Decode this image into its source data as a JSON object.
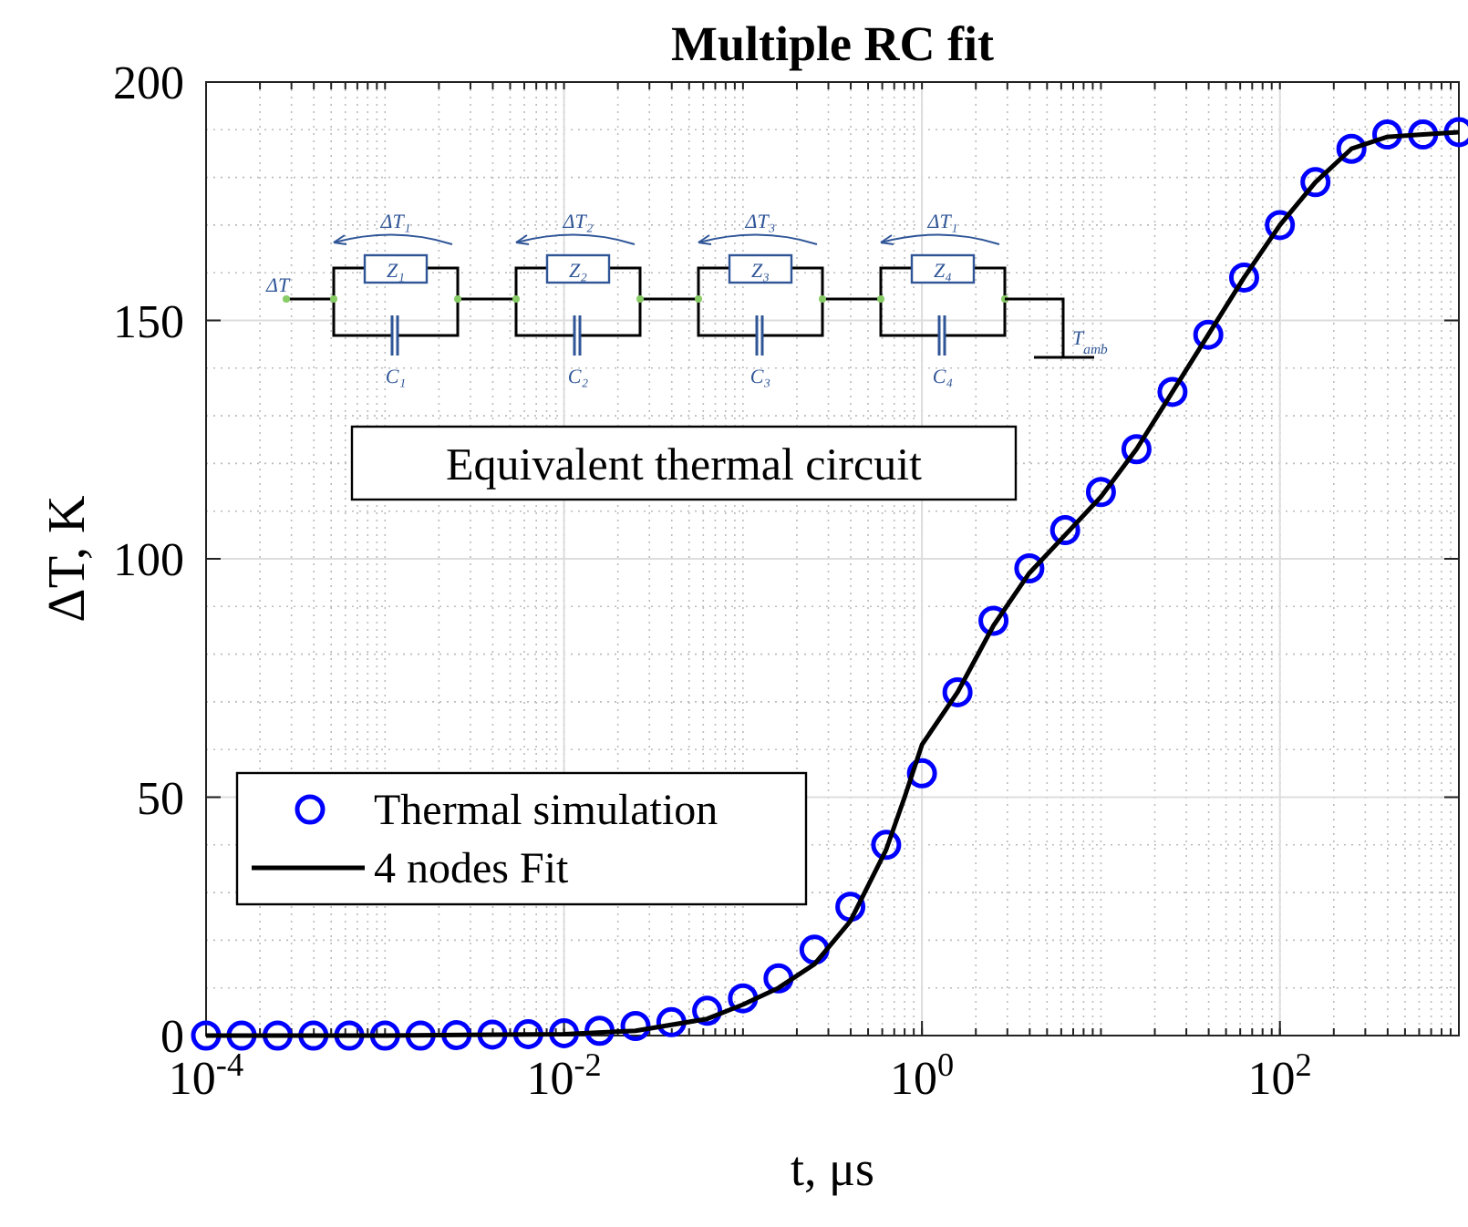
{
  "chart_data": {
    "type": "scatter",
    "title": "Multiple RC fit",
    "xlabel": "t, μs",
    "ylabel": "ΔT, K",
    "log": "x",
    "xlim": [
      0.0001,
      1000
    ],
    "ylim": [
      0,
      200
    ],
    "xticks": [
      {
        "value": 0.0001,
        "label": "10$^{-4}$"
      },
      {
        "value": 0.01,
        "label": "10$^{-2}$"
      },
      {
        "value": 1,
        "label": "10$^{0}$"
      },
      {
        "value": 100,
        "label": "10$^{2}$"
      }
    ],
    "yticks": [
      0,
      50,
      100,
      150,
      200
    ],
    "grid": true,
    "legend": "bottom left",
    "series": [
      {
        "name": "Thermal simulation",
        "marker": "circle",
        "color": "#0000ff",
        "x": [
          0.0001,
          0.000158,
          0.000251,
          0.000398,
          0.000631,
          0.001,
          0.00158,
          0.00251,
          0.00398,
          0.00631,
          0.01,
          0.0158,
          0.0251,
          0.0398,
          0.0631,
          0.1,
          0.158,
          0.251,
          0.398,
          0.631,
          1,
          1.58,
          2.51,
          3.98,
          6.31,
          10,
          15.8,
          25.1,
          39.8,
          63.1,
          100,
          158,
          251,
          398,
          631,
          1000
        ],
        "values": [
          0,
          0,
          0,
          0,
          0,
          0,
          0,
          0.1,
          0.2,
          0.3,
          0.5,
          1,
          2,
          2.8,
          5.2,
          7.8,
          12,
          18,
          27,
          40,
          55,
          72,
          87,
          98,
          106,
          114,
          123,
          135,
          147,
          159,
          170,
          179,
          186,
          189,
          189,
          189.5
        ]
      },
      {
        "name": "4 nodes Fit",
        "type": "line",
        "line_style": "solid",
        "color": "#000000",
        "x": [
          0.0001,
          0.001,
          0.01,
          0.0251,
          0.0631,
          0.1,
          0.158,
          0.251,
          0.398,
          0.631,
          0.8,
          1,
          1.58,
          2.51,
          3.98,
          6.31,
          10,
          15.8,
          25.1,
          39.8,
          63.1,
          100,
          158,
          251,
          398,
          631,
          1000
        ],
        "values": [
          0,
          0,
          0.3,
          1,
          3.5,
          6.5,
          10,
          15,
          24,
          39,
          50,
          61,
          72,
          86,
          97,
          105,
          113,
          123,
          135,
          147,
          159,
          170,
          179,
          186,
          188.5,
          189,
          189.5
        ]
      }
    ],
    "annotations": [
      "Equivalent thermal circuit",
      "ΔT",
      "ΔT₁",
      "ΔT₂",
      "ΔT₃",
      "ΔT₁",
      "Z₁",
      "Z₂",
      "Z₃",
      "Z₄",
      "C₁",
      "C₂",
      "C₃",
      "C₄",
      "T$_{amb}$"
    ]
  }
}
